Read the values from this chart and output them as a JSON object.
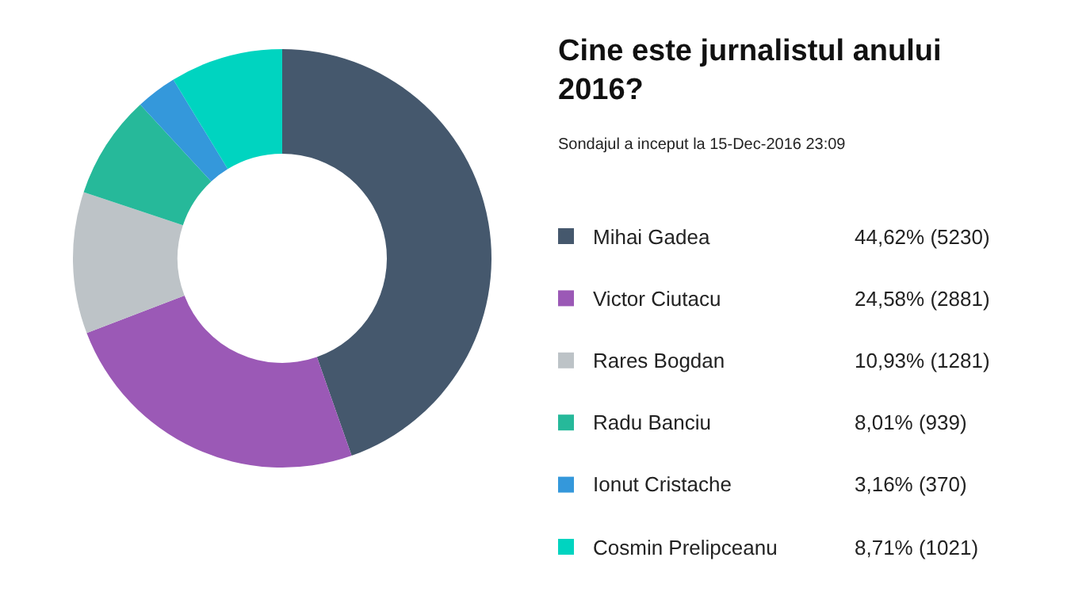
{
  "chart_data": {
    "type": "donut",
    "title": "Cine este jurnalistul anului 2016?",
    "subtitle": "Sondajul a inceput la 15-Dec-2016 23:09",
    "categories": [
      "Mihai Gadea",
      "Victor Ciutacu",
      "Rares Bogdan",
      "Radu Banciu",
      "Ionut Cristache",
      "Cosmin Prelipceanu"
    ],
    "values": [
      5230,
      2881,
      1281,
      939,
      370,
      1021
    ],
    "value_labels": [
      "44,62% (5230)",
      "24,58% (2881)",
      "10,93% (1281)",
      "8,01% (939)",
      "3,16% (370)",
      "8,71% (1021)"
    ],
    "colors": [
      "#45586d",
      "#9b59b6",
      "#bdc3c7",
      "#26b99a",
      "#3498db",
      "#00d4c0"
    ],
    "legend": "right"
  }
}
